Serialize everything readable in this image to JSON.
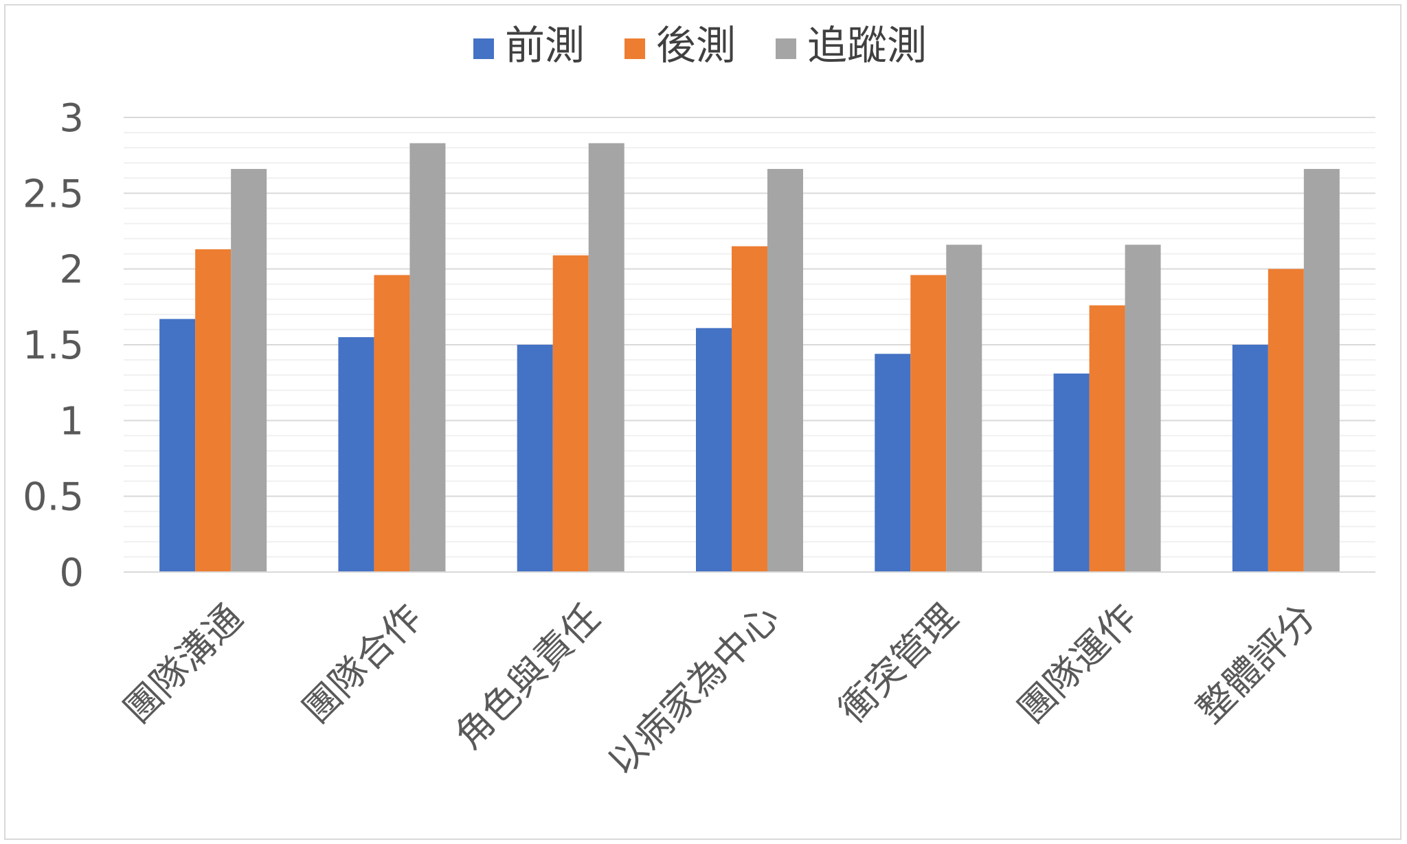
{
  "chart_data": {
    "type": "bar",
    "categories": [
      "團隊溝通",
      "團隊合作",
      "角色與責任",
      "以病家為中心",
      "衝突管理",
      "團隊運作",
      "整體評分"
    ],
    "series": [
      {
        "name": "前測",
        "color": "#4472C4",
        "values": [
          1.67,
          1.55,
          1.5,
          1.61,
          1.44,
          1.31,
          1.5
        ]
      },
      {
        "name": "後測",
        "color": "#ED7D31",
        "values": [
          2.13,
          1.96,
          2.09,
          2.15,
          1.96,
          1.76,
          2.0
        ]
      },
      {
        "name": "追蹤測",
        "color": "#A5A5A5",
        "values": [
          2.66,
          2.83,
          2.83,
          2.66,
          2.16,
          2.16,
          2.66
        ]
      }
    ],
    "yticks": [
      "0",
      "0.5",
      "1",
      "1.5",
      "2",
      "2.5",
      "3"
    ],
    "ylim": [
      0,
      3
    ],
    "major_step": 0.5,
    "minor_step": 0.1,
    "grid": true,
    "legend_position": "top-center",
    "title": "",
    "xlabel": "",
    "ylabel": ""
  }
}
